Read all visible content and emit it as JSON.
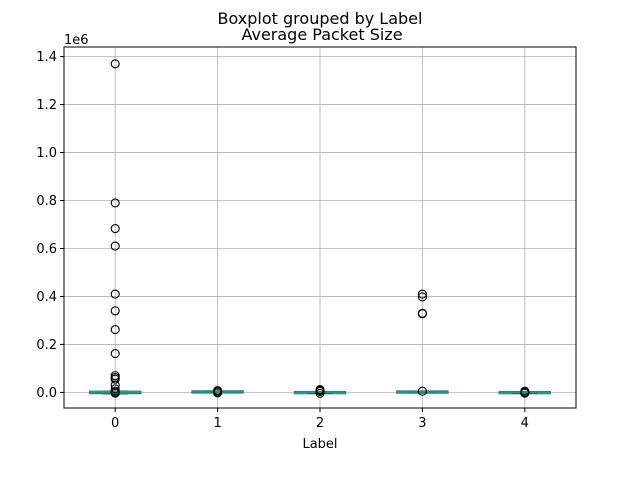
{
  "chart_data": {
    "type": "boxplot",
    "suptitle": "Boxplot grouped by Label",
    "title": "Average Packet Size",
    "xlabel": "Label",
    "ylabel": "",
    "y_offset_label": "1e6",
    "categories": [
      "0",
      "1",
      "2",
      "3",
      "4"
    ],
    "ylim": [
      -65000,
      1440000
    ],
    "y_ticks": [
      0,
      200000,
      400000,
      600000,
      800000,
      1000000,
      1200000,
      1400000
    ],
    "y_tick_labels": [
      "0.0",
      "0.2",
      "0.4",
      "0.6",
      "0.8",
      "1.0",
      "1.2",
      "1.4"
    ],
    "grid": true,
    "boxes": [
      {
        "category": "0",
        "q1": -3000,
        "median": 0,
        "q3": 3000,
        "whisker_low": -6000,
        "whisker_high": 6000,
        "outliers": [
          1370000,
          790000,
          683000,
          610000,
          410000,
          340000,
          262000,
          162000,
          70000,
          62000,
          55000,
          30000,
          15000,
          5000,
          0,
          -3000
        ]
      },
      {
        "category": "1",
        "q1": 1000,
        "median": 2000,
        "q3": 4500,
        "whisker_low": -1000,
        "whisker_high": 6000,
        "outliers": [
          8000,
          3000,
          -2000
        ]
      },
      {
        "category": "2",
        "q1": -2000,
        "median": 0,
        "q3": 1500,
        "whisker_low": -4000,
        "whisker_high": 3000,
        "outliers": [
          12000,
          8000,
          4000,
          -4000
        ]
      },
      {
        "category": "3",
        "q1": 0,
        "median": 2000,
        "q3": 4000,
        "whisker_low": -2000,
        "whisker_high": 6000,
        "outliers": [
          410000,
          398000,
          330000,
          328000,
          5000
        ]
      },
      {
        "category": "4",
        "q1": -2000,
        "median": 0,
        "q3": 1500,
        "whisker_low": -4000,
        "whisker_high": 3000,
        "outliers": [
          5000,
          0,
          -3000
        ]
      }
    ],
    "colors": {
      "box": "#1f77b4",
      "median": "#2ca02c",
      "whisker": "#1f77b4",
      "outlier": "#000000",
      "grid": "#b0b0b0",
      "axis": "#000000"
    }
  }
}
